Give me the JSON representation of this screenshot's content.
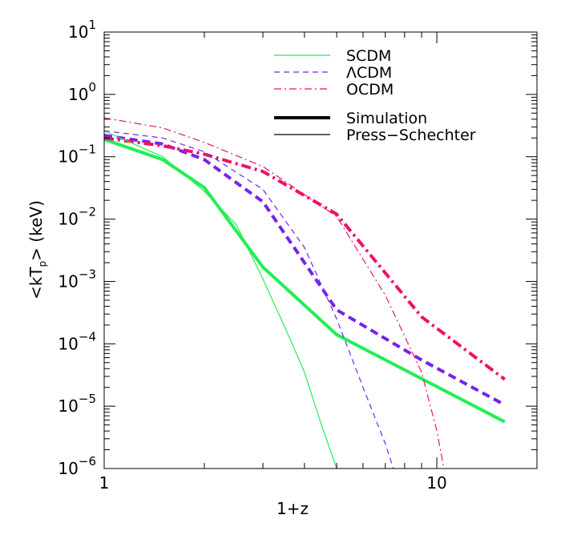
{
  "chart_data": {
    "type": "line",
    "xlabel": "1+z",
    "ylabel": "<kT",
    "ylabel_sub": "p",
    "ylabel_tail": "> (keV)",
    "x_scale": "log",
    "y_scale": "log",
    "xlim": [
      1,
      20
    ],
    "ylim": [
      1e-06,
      10
    ],
    "grid": false,
    "legend_position": "top-right",
    "x_ticks": [
      {
        "value": 1,
        "label": "1"
      },
      {
        "value": 10,
        "label": "10"
      }
    ],
    "y_ticks": [
      {
        "value": 1e-06,
        "base": "10",
        "exp": "−6"
      },
      {
        "value": 1e-05,
        "base": "10",
        "exp": "−5"
      },
      {
        "value": 0.0001,
        "base": "10",
        "exp": "−4"
      },
      {
        "value": 0.001,
        "base": "10",
        "exp": "−3"
      },
      {
        "value": 0.01,
        "base": "10",
        "exp": "−2"
      },
      {
        "value": 0.1,
        "base": "10",
        "exp": "−1"
      },
      {
        "value": 1,
        "base": "10",
        "exp": "0"
      },
      {
        "value": 10,
        "base": "10",
        "exp": "1"
      }
    ],
    "legend": {
      "models": [
        {
          "name": "SCDM",
          "color": "#22ee55",
          "dash": "none"
        },
        {
          "name": "ΛCDM",
          "color": "#7722ee",
          "dash": "dashed"
        },
        {
          "name": "OCDM",
          "color": "#ee1166",
          "dash": "dashdot"
        }
      ],
      "styles": [
        {
          "name": "Simulation",
          "width": "thick"
        },
        {
          "name": "Press−Schechter",
          "width": "thin"
        }
      ]
    },
    "series": [
      {
        "model": "SCDM",
        "kind": "Simulation",
        "color": "#22ee55",
        "dash": "none",
        "thick": true,
        "points": [
          [
            1,
            0.19
          ],
          [
            1.5,
            0.09
          ],
          [
            2,
            0.032
          ],
          [
            3,
            0.0017
          ],
          [
            5,
            0.00014
          ],
          [
            16,
            5.6e-06
          ]
        ]
      },
      {
        "model": "ΛCDM",
        "kind": "Simulation",
        "color": "#7722ee",
        "dash": "dashed",
        "thick": true,
        "points": [
          [
            1,
            0.22
          ],
          [
            1.5,
            0.16
          ],
          [
            2,
            0.09
          ],
          [
            3,
            0.019
          ],
          [
            5,
            0.00035
          ],
          [
            9,
            5.5e-05
          ],
          [
            16,
            1.05e-05
          ]
        ]
      },
      {
        "model": "OCDM",
        "kind": "Simulation",
        "color": "#ee1166",
        "dash": "dashdot",
        "thick": true,
        "points": [
          [
            1,
            0.2
          ],
          [
            1.5,
            0.15
          ],
          [
            2,
            0.11
          ],
          [
            3,
            0.058
          ],
          [
            5,
            0.012
          ],
          [
            9,
            0.00027
          ],
          [
            16,
            2.7e-05
          ]
        ]
      },
      {
        "model": "SCDM",
        "kind": "Press−Schechter",
        "color": "#22ee55",
        "dash": "none",
        "thick": false,
        "points": [
          [
            1,
            0.26
          ],
          [
            1.5,
            0.1
          ],
          [
            2,
            0.028
          ],
          [
            2.5,
            0.008
          ],
          [
            3,
            0.0011
          ],
          [
            3.5,
            0.00018
          ],
          [
            4,
            3.5e-05
          ],
          [
            4.5,
            5e-06
          ],
          [
            5,
            1e-06
          ]
        ]
      },
      {
        "model": "ΛCDM",
        "kind": "Press−Schechter",
        "color": "#7722ee",
        "dash": "dashed",
        "thick": false,
        "points": [
          [
            1,
            0.26
          ],
          [
            1.5,
            0.2
          ],
          [
            2,
            0.12
          ],
          [
            3,
            0.03
          ],
          [
            4,
            0.0035
          ],
          [
            5,
            0.00025
          ],
          [
            6,
            2e-05
          ],
          [
            7,
            2.5e-06
          ],
          [
            7.4,
            1e-06
          ]
        ]
      },
      {
        "model": "OCDM",
        "kind": "Press−Schechter",
        "color": "#ee1166",
        "dash": "dashdot",
        "thick": false,
        "points": [
          [
            1,
            0.42
          ],
          [
            1.5,
            0.29
          ],
          [
            2,
            0.17
          ],
          [
            3,
            0.07
          ],
          [
            5,
            0.011
          ],
          [
            7,
            0.0006
          ],
          [
            9,
            3.5e-05
          ],
          [
            10,
            4e-06
          ],
          [
            10.5,
            1e-06
          ]
        ]
      }
    ]
  }
}
